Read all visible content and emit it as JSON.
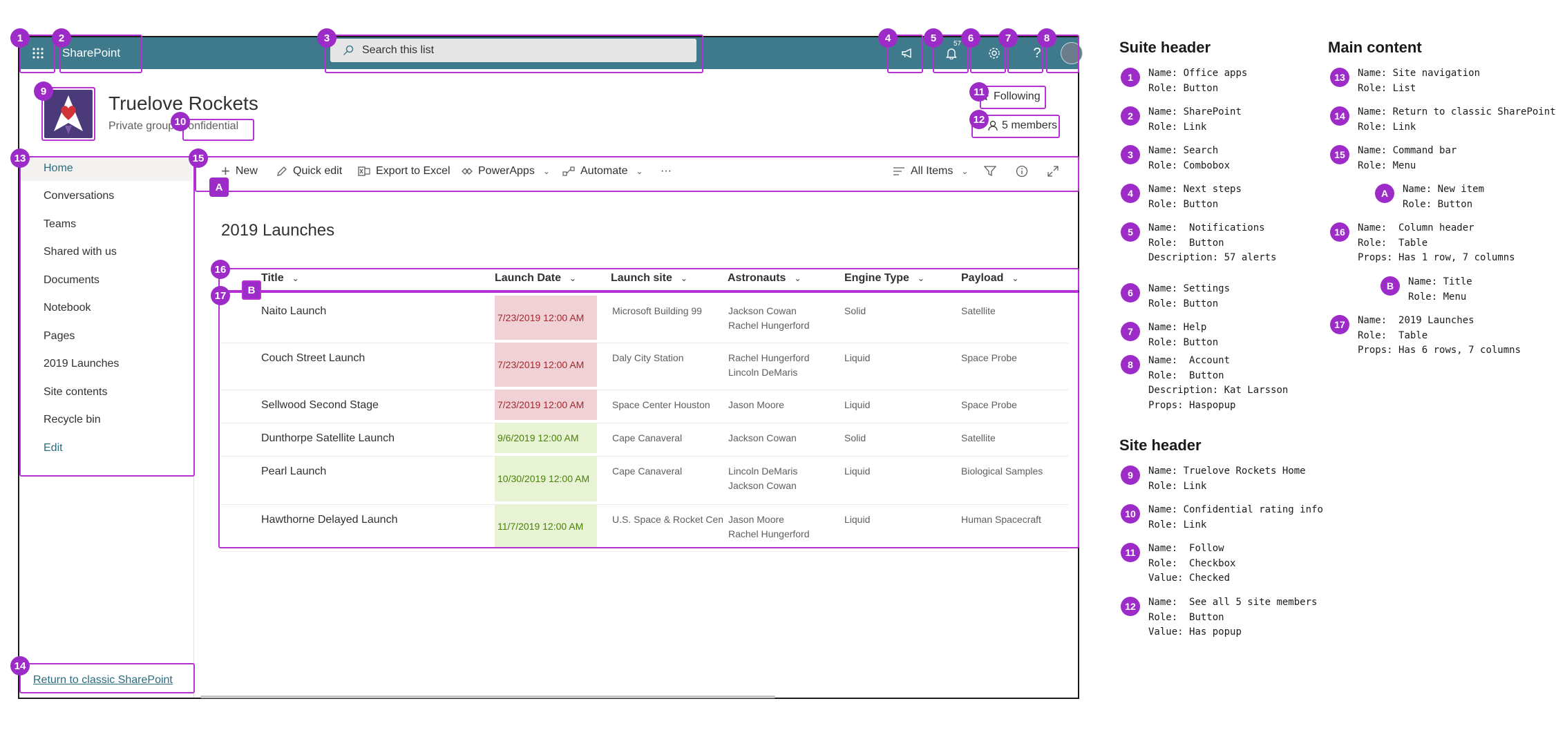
{
  "suite": {
    "brand": "SharePoint",
    "search_placeholder": "Search this list",
    "notifications_count": "57"
  },
  "site": {
    "title": "Truelove Rockets",
    "subtitle": "Private group",
    "rating": "Confidential",
    "follow_label": "Following",
    "members_label": "5 members"
  },
  "nav": {
    "items": [
      "Home",
      "Conversations",
      "Teams",
      "Shared with us",
      "Documents",
      "Notebook",
      "Pages",
      "2019 Launches",
      "Site contents",
      "Recycle bin"
    ],
    "edit": "Edit",
    "return_link": "Return to classic SharePoint"
  },
  "commandbar": {
    "new": "New",
    "quick_edit": "Quick edit",
    "export": "Export to Excel",
    "powerapps": "PowerApps",
    "automate": "Automate",
    "more": "···",
    "view": "All Items"
  },
  "list": {
    "title": "2019 Launches",
    "columns": [
      "Title",
      "Launch Date",
      "Launch site",
      "Astronauts",
      "Engine Type",
      "Payload"
    ],
    "rows": [
      {
        "title": "Naito Launch",
        "date": "7/23/2019 12:00 AM",
        "status": "past",
        "site": "Microsoft Building 99",
        "astronauts": [
          "Jackson Cowan",
          "Rachel Hungerford"
        ],
        "engine": "Solid",
        "payload": "Satellite"
      },
      {
        "title": "Couch Street Launch",
        "date": "7/23/2019 12:00 AM",
        "status": "past",
        "site": "Daly City Station",
        "astronauts": [
          "Rachel Hungerford",
          "Lincoln DeMaris"
        ],
        "engine": "Liquid",
        "payload": "Space Probe"
      },
      {
        "title": "Sellwood Second Stage",
        "date": "7/23/2019 12:00 AM",
        "status": "past",
        "site": "Space Center Houston",
        "astronauts": [
          "Jason Moore"
        ],
        "engine": "Liquid",
        "payload": "Space Probe"
      },
      {
        "title": "Dunthorpe Satellite Launch",
        "date": "9/6/2019 12:00 AM",
        "status": "future",
        "site": "Cape Canaveral",
        "astronauts": [
          "Jackson Cowan"
        ],
        "engine": "Solid",
        "payload": "Satellite"
      },
      {
        "title": "Pearl Launch",
        "date": "10/30/2019 12:00 AM",
        "status": "future",
        "site": "Cape Canaveral",
        "astronauts": [
          "Lincoln DeMaris",
          "Jackson Cowan"
        ],
        "engine": "Liquid",
        "payload": "Biological Samples"
      },
      {
        "title": "Hawthorne Delayed Launch",
        "date": "11/7/2019 12:00 AM",
        "status": "future",
        "site": "U.S. Space & Rocket Cente",
        "astronauts": [
          "Jason Moore",
          "Rachel Hungerford"
        ],
        "engine": "Liquid",
        "payload": "Human Spacecraft"
      }
    ]
  },
  "colors": {
    "suitebar": "#3e7a8c",
    "annotation": "#b432d4",
    "badge": "#9d2bc8",
    "past_bg": "#f0d2d6",
    "past_text": "#a4262c",
    "future_bg": "#e8f3d6",
    "future_text": "#498205"
  },
  "badges": [
    "1",
    "2",
    "3",
    "4",
    "5",
    "6",
    "7",
    "8",
    "9",
    "10",
    "11",
    "12",
    "13",
    "14",
    "15",
    "16",
    "17",
    "A",
    "B"
  ],
  "legend": {
    "sections": {
      "suite": "Suite header",
      "site": "Site header",
      "main": "Main content"
    },
    "keys": {
      "name": "Name:",
      "role": "Role:",
      "description": "Description:",
      "props": "Props:",
      "value": "Value:"
    },
    "entries": [
      {
        "badge": "1",
        "name": "Office apps",
        "role": "Button"
      },
      {
        "badge": "2",
        "name": "SharePoint",
        "role": "Link"
      },
      {
        "badge": "3",
        "name": "Search",
        "role": "Combobox"
      },
      {
        "badge": "4",
        "name": "Next steps",
        "role": "Button"
      },
      {
        "badge": "5",
        "name": " Notifications",
        "role": " Button",
        "description": "57 alerts"
      },
      {
        "badge": "6",
        "name": "Settings",
        "role": "Button"
      },
      {
        "badge": "7",
        "name": "Help",
        "role": "Button"
      },
      {
        "badge": "8",
        "name": " Account",
        "role": " Button",
        "description": "Kat Larsson",
        "props": "Haspopup"
      },
      {
        "badge": "9",
        "name": "Truelove Rockets Home",
        "role": "Link"
      },
      {
        "badge": "10",
        "name": "Confidential rating info",
        "role": "Link"
      },
      {
        "badge": "11",
        "name": " Follow",
        "role": " Checkbox",
        "value": "Checked"
      },
      {
        "badge": "12",
        "name": " See all 5 site members",
        "role": " Button",
        "value": "Has popup"
      },
      {
        "badge": "13",
        "name": "Site navigation",
        "role": "List"
      },
      {
        "badge": "14",
        "name": "Return to classic SharePoint",
        "role": "Link"
      },
      {
        "badge": "15",
        "name": "Command bar",
        "role": "Menu"
      },
      {
        "badge": "A",
        "name": "New item",
        "role": "Button"
      },
      {
        "badge": "16",
        "name": " Column header",
        "role": " Table",
        "props": "Has 1 row, 7 columns"
      },
      {
        "badge": "B",
        "name": "Title",
        "role": "Menu"
      },
      {
        "badge": "17",
        "name": " 2019 Launches",
        "role": " Table",
        "props": "Has 6 rows, 7 columns"
      }
    ]
  }
}
